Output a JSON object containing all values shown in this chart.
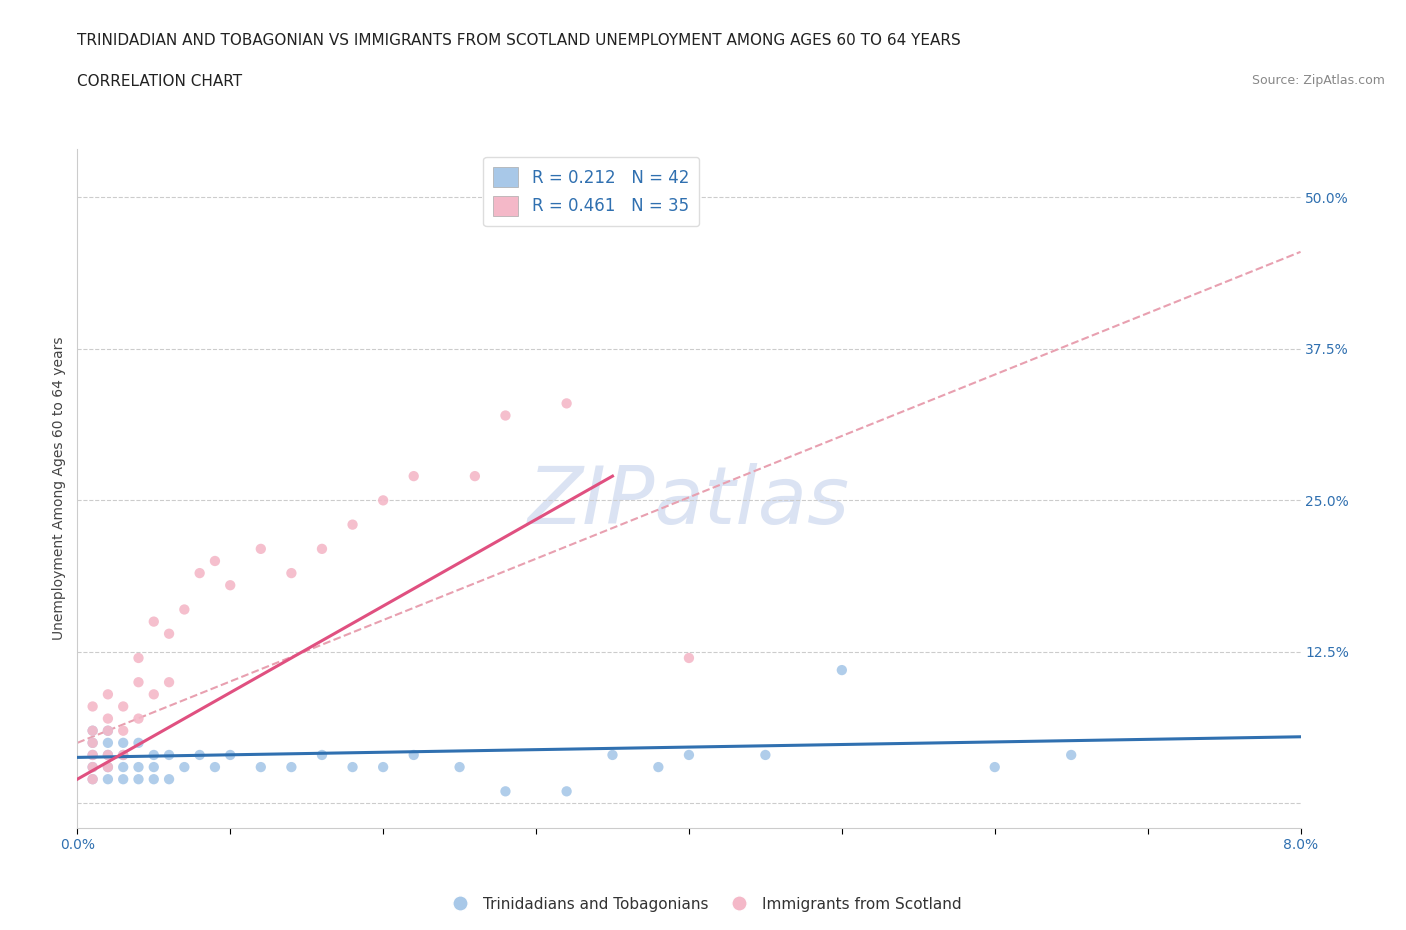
{
  "title_line1": "TRINIDADIAN AND TOBAGONIAN VS IMMIGRANTS FROM SCOTLAND UNEMPLOYMENT AMONG AGES 60 TO 64 YEARS",
  "title_line2": "CORRELATION CHART",
  "source_text": "Source: ZipAtlas.com",
  "ylabel": "Unemployment Among Ages 60 to 64 years",
  "xlim": [
    0.0,
    0.08
  ],
  "ylim": [
    -0.02,
    0.54
  ],
  "xticks": [
    0.0,
    0.01,
    0.02,
    0.03,
    0.04,
    0.05,
    0.06,
    0.07,
    0.08
  ],
  "yticks": [
    0.0,
    0.125,
    0.25,
    0.375,
    0.5
  ],
  "blue_color": "#a8c8e8",
  "pink_color": "#f4b8c8",
  "blue_line_color": "#3070b0",
  "pink_line_color": "#e05080",
  "dash_line_color": "#e8a0b0",
  "watermark_color": "#ccd8ee",
  "label_blue": "Trinidadians and Tobagonians",
  "label_pink": "Immigrants from Scotland",
  "legend_text1": "R = 0.212   N = 42",
  "legend_text2": "R = 0.461   N = 35",
  "blue_scatter_x": [
    0.001,
    0.001,
    0.001,
    0.001,
    0.001,
    0.002,
    0.002,
    0.002,
    0.002,
    0.002,
    0.003,
    0.003,
    0.003,
    0.003,
    0.004,
    0.004,
    0.004,
    0.005,
    0.005,
    0.005,
    0.006,
    0.006,
    0.007,
    0.008,
    0.009,
    0.01,
    0.012,
    0.014,
    0.016,
    0.018,
    0.02,
    0.022,
    0.025,
    0.028,
    0.032,
    0.035,
    0.038,
    0.04,
    0.045,
    0.05,
    0.06,
    0.065
  ],
  "blue_scatter_y": [
    0.02,
    0.03,
    0.04,
    0.05,
    0.06,
    0.02,
    0.03,
    0.04,
    0.05,
    0.06,
    0.02,
    0.03,
    0.04,
    0.05,
    0.02,
    0.03,
    0.05,
    0.02,
    0.03,
    0.04,
    0.02,
    0.04,
    0.03,
    0.04,
    0.03,
    0.04,
    0.03,
    0.03,
    0.04,
    0.03,
    0.03,
    0.04,
    0.03,
    0.01,
    0.01,
    0.04,
    0.03,
    0.04,
    0.04,
    0.11,
    0.03,
    0.04
  ],
  "pink_scatter_x": [
    0.001,
    0.001,
    0.001,
    0.001,
    0.001,
    0.001,
    0.002,
    0.002,
    0.002,
    0.002,
    0.002,
    0.003,
    0.003,
    0.003,
    0.004,
    0.004,
    0.004,
    0.005,
    0.005,
    0.006,
    0.006,
    0.007,
    0.008,
    0.009,
    0.01,
    0.012,
    0.014,
    0.016,
    0.018,
    0.02,
    0.022,
    0.026,
    0.028,
    0.032,
    0.04
  ],
  "pink_scatter_y": [
    0.02,
    0.03,
    0.04,
    0.05,
    0.06,
    0.08,
    0.03,
    0.04,
    0.06,
    0.07,
    0.09,
    0.04,
    0.06,
    0.08,
    0.07,
    0.1,
    0.12,
    0.09,
    0.15,
    0.1,
    0.14,
    0.16,
    0.19,
    0.2,
    0.18,
    0.21,
    0.19,
    0.21,
    0.23,
    0.25,
    0.27,
    0.27,
    0.32,
    0.33,
    0.12
  ],
  "blue_trend": [
    0.0,
    0.08,
    0.038,
    0.055
  ],
  "pink_trend": [
    0.0,
    0.035,
    0.02,
    0.27
  ],
  "dash_trend": [
    0.0,
    0.08,
    0.05,
    0.455
  ],
  "background_color": "#ffffff",
  "title_fontsize": 11,
  "axis_label_fontsize": 10,
  "tick_fontsize": 10,
  "legend_fontsize": 12
}
